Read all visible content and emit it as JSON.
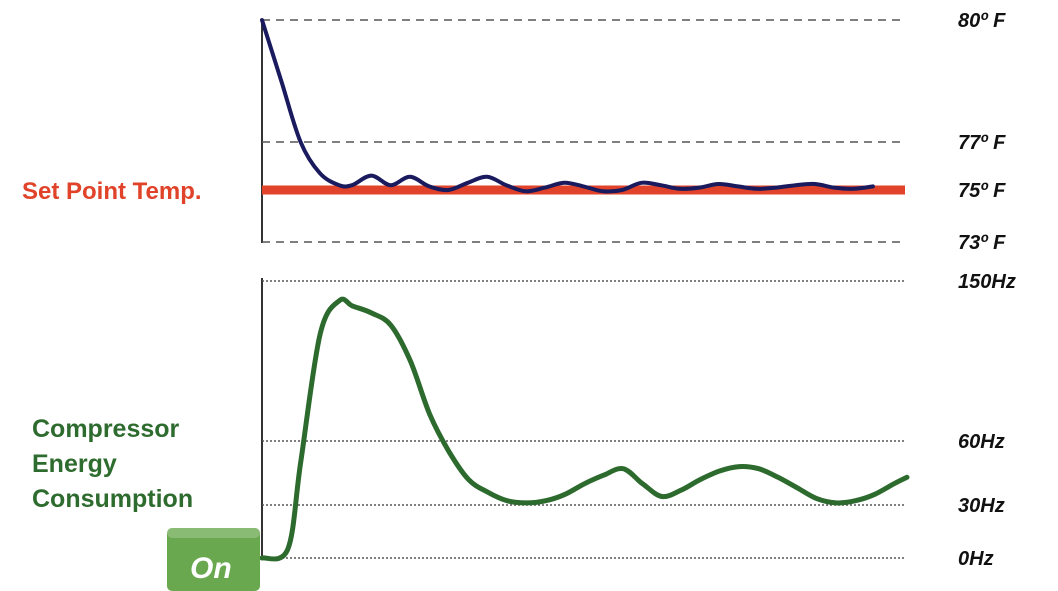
{
  "colors": {
    "temperature_line": "#1a1a5e",
    "setpoint": "#e0432a",
    "energy_line": "#2d6a2d",
    "energy_label": "#2e6b2e",
    "on_badge": "#6aa84f",
    "gridline": "#555555"
  },
  "labels": {
    "setpoint": "Set Point Temp.",
    "energy": [
      "Compressor",
      "Energy",
      "Consumption"
    ],
    "on_button": "On"
  },
  "chart_data": [
    {
      "type": "line",
      "name": "temperature",
      "ylim": [
        73,
        80
      ],
      "y_ticks": [
        {
          "value": 80,
          "label": "80º F"
        },
        {
          "value": 77,
          "label": "77º F"
        },
        {
          "value": 75,
          "label": "75º F"
        },
        {
          "value": 73,
          "label": "73º F"
        }
      ],
      "setpoint": {
        "value": 75,
        "label": "Set Point Temp."
      },
      "xlim": [
        0,
        100
      ],
      "series": [
        {
          "x": [
            0,
            3,
            6,
            9,
            12,
            14,
            17,
            20,
            23,
            26,
            29,
            32,
            35,
            38,
            41,
            44,
            47,
            50,
            53,
            56,
            59,
            62,
            65,
            68,
            71,
            74,
            77,
            80,
            83,
            86,
            89,
            92,
            95
          ],
          "y": [
            80,
            78.5,
            77,
            75.7,
            75.2,
            75.2,
            75.6,
            75.2,
            75.55,
            75.15,
            75.0,
            75.3,
            75.55,
            75.2,
            74.95,
            75.1,
            75.3,
            75.15,
            74.95,
            75.0,
            75.3,
            75.2,
            75.05,
            75.1,
            75.25,
            75.15,
            75.05,
            75.1,
            75.2,
            75.25,
            75.1,
            75.05,
            75.15
          ]
        }
      ]
    },
    {
      "type": "line",
      "name": "compressor",
      "ylim": [
        0,
        150
      ],
      "y_ticks": [
        {
          "value": 150,
          "label": "150Hz"
        },
        {
          "value": 60,
          "label": "60Hz"
        },
        {
          "value": 30,
          "label": "30Hz"
        },
        {
          "value": 0,
          "label": "0Hz"
        }
      ],
      "xlim": [
        0,
        100
      ],
      "series": [
        {
          "x": [
            0,
            4,
            6,
            9,
            12,
            14,
            17,
            20,
            23,
            26,
            29,
            32,
            35,
            38,
            41,
            44,
            47,
            50,
            53,
            56,
            59,
            62,
            65,
            68,
            71,
            74,
            77,
            80,
            83,
            86,
            89,
            92,
            95,
            98,
            100
          ],
          "y": [
            0,
            5,
            50,
            120,
            139,
            136,
            132,
            125,
            105,
            75,
            55,
            42,
            36,
            32,
            31,
            32,
            35,
            40,
            44,
            47,
            40,
            34,
            37,
            42,
            46,
            48,
            47,
            43,
            38,
            33,
            31,
            32,
            35,
            40,
            43
          ]
        }
      ]
    }
  ]
}
